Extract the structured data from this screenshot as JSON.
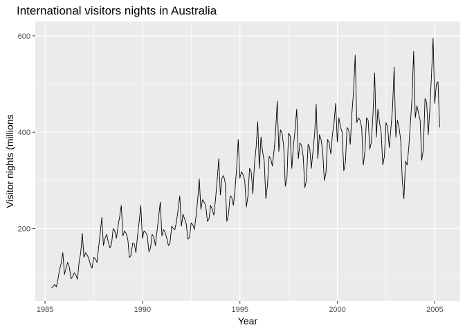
{
  "chart_data": {
    "type": "line",
    "title": "International visitors nights in Australia",
    "xlabel": "Year",
    "ylabel": "Visitor nights (millions",
    "xlim": [
      1984.5,
      2006.3
    ],
    "ylim": [
      50,
      630
    ],
    "x_ticks": [
      1985,
      1990,
      1995,
      2000,
      2005
    ],
    "y_ticks": [
      200,
      400,
      600
    ],
    "x_tick_labels": [
      "1985",
      "1990",
      "1995",
      "2000",
      "2005"
    ],
    "y_tick_labels": [
      "200",
      "400",
      "600"
    ],
    "grid": true,
    "colors": {
      "panel": "#ebebeb",
      "grid_major": "#ffffff",
      "line": "#000000"
    },
    "x_start": 1985.33,
    "frequency": 12,
    "values": [
      77,
      80,
      84,
      79,
      95,
      115,
      128,
      150,
      105,
      118,
      130,
      120,
      96,
      100,
      108,
      104,
      95,
      130,
      150,
      190,
      140,
      150,
      145,
      138,
      125,
      118,
      140,
      138,
      130,
      160,
      190,
      223,
      165,
      180,
      188,
      172,
      160,
      168,
      200,
      195,
      180,
      205,
      225,
      248,
      185,
      195,
      190,
      178,
      140,
      145,
      170,
      168,
      150,
      185,
      215,
      248,
      180,
      195,
      192,
      185,
      152,
      160,
      188,
      183,
      165,
      195,
      225,
      255,
      185,
      198,
      192,
      180,
      165,
      170,
      205,
      200,
      198,
      215,
      240,
      268,
      205,
      230,
      220,
      210,
      178,
      182,
      212,
      208,
      198,
      225,
      258,
      303,
      240,
      260,
      255,
      248,
      215,
      220,
      248,
      240,
      228,
      260,
      300,
      345,
      270,
      305,
      310,
      295,
      215,
      230,
      268,
      265,
      248,
      280,
      325,
      385,
      305,
      318,
      312,
      300,
      245,
      268,
      325,
      318,
      272,
      335,
      368,
      422,
      325,
      390,
      360,
      340,
      262,
      290,
      350,
      345,
      330,
      360,
      400,
      465,
      360,
      405,
      398,
      370,
      288,
      305,
      398,
      392,
      325,
      372,
      405,
      448,
      345,
      378,
      372,
      350,
      285,
      300,
      375,
      368,
      325,
      360,
      395,
      458,
      345,
      395,
      385,
      360,
      300,
      315,
      385,
      378,
      355,
      395,
      420,
      460,
      380,
      430,
      410,
      400,
      320,
      338,
      410,
      405,
      375,
      440,
      485,
      560,
      420,
      430,
      425,
      410,
      332,
      360,
      430,
      425,
      365,
      380,
      440,
      523,
      390,
      448,
      420,
      400,
      332,
      350,
      420,
      410,
      368,
      408,
      450,
      535,
      390,
      425,
      410,
      385,
      300,
      262,
      340,
      332,
      368,
      420,
      470,
      568,
      430,
      455,
      440,
      425,
      342,
      365,
      470,
      462,
      395,
      450,
      520,
      595,
      460,
      500,
      505,
      410
    ]
  }
}
